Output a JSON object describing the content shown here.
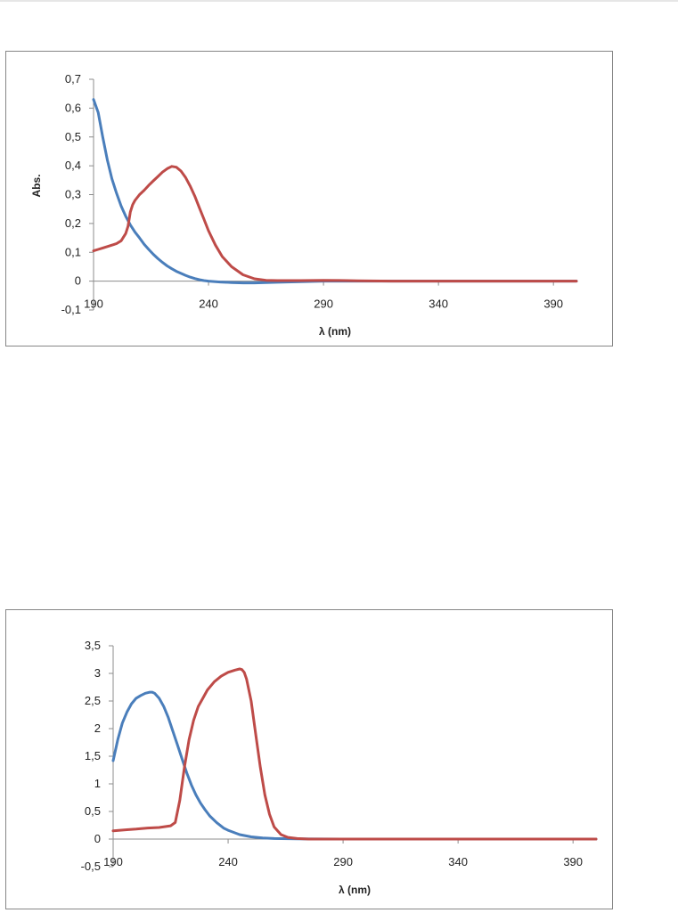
{
  "chart_data": [
    {
      "type": "line",
      "title": "",
      "xlabel": "λ (nm)",
      "ylabel": "Abs.",
      "xlim": [
        190,
        400
      ],
      "ylim": [
        -0.1,
        0.7
      ],
      "x_ticks": [
        190,
        240,
        290,
        340,
        390
      ],
      "x_tick_labels": [
        "190",
        "240",
        "290",
        "340",
        "390"
      ],
      "y_ticks": [
        -0.1,
        0,
        0.1,
        0.2,
        0.3,
        0.4,
        0.5,
        0.6,
        0.7
      ],
      "y_tick_labels": [
        "-0,1",
        "0",
        "0,1",
        "0,2",
        "0,3",
        "0,4",
        "0,5",
        "0,6",
        "0,7"
      ],
      "grid": false,
      "legend": "none",
      "series": [
        {
          "color": "#4a7ebb",
          "x": [
            190,
            192,
            194,
            196,
            198,
            200,
            202,
            204,
            206,
            208,
            210,
            212,
            214,
            216,
            218,
            220,
            222,
            224,
            226,
            228,
            230,
            232,
            234,
            236,
            238,
            240,
            245,
            250,
            255,
            260,
            265,
            270,
            280,
            290,
            300,
            320,
            340,
            360,
            380,
            400
          ],
          "y": [
            0.63,
            0.585,
            0.5,
            0.42,
            0.355,
            0.305,
            0.26,
            0.225,
            0.195,
            0.17,
            0.15,
            0.128,
            0.11,
            0.093,
            0.078,
            0.065,
            0.053,
            0.043,
            0.034,
            0.027,
            0.02,
            0.014,
            0.009,
            0.005,
            0.002,
            0.0,
            -0.003,
            -0.005,
            -0.006,
            -0.006,
            -0.005,
            -0.004,
            -0.002,
            0.0,
            0.0,
            0.0,
            0.0,
            0.0,
            0.0,
            0.0
          ]
        },
        {
          "color": "#be4b48",
          "x": [
            190,
            192,
            194,
            196,
            198,
            200,
            202,
            204,
            205,
            206,
            207,
            208,
            210,
            212,
            214,
            216,
            218,
            220,
            222,
            224,
            226,
            228,
            230,
            232,
            234,
            236,
            238,
            240,
            243,
            246,
            250,
            255,
            260,
            265,
            270,
            280,
            290,
            300,
            305,
            320,
            340,
            360,
            380,
            400
          ],
          "y": [
            0.105,
            0.11,
            0.115,
            0.12,
            0.125,
            0.13,
            0.14,
            0.165,
            0.19,
            0.24,
            0.265,
            0.28,
            0.3,
            0.315,
            0.332,
            0.348,
            0.363,
            0.378,
            0.39,
            0.398,
            0.395,
            0.382,
            0.36,
            0.33,
            0.295,
            0.255,
            0.215,
            0.175,
            0.125,
            0.085,
            0.05,
            0.022,
            0.008,
            0.003,
            0.002,
            0.002,
            0.003,
            0.002,
            0.001,
            0.0,
            0.0,
            0.0,
            0.0,
            0.0
          ]
        }
      ]
    },
    {
      "type": "line",
      "title": "",
      "xlabel": "λ (nm)",
      "ylabel": "",
      "xlim": [
        190,
        400
      ],
      "ylim": [
        -0.5,
        3.5
      ],
      "x_ticks": [
        190,
        240,
        290,
        340,
        390
      ],
      "x_tick_labels": [
        "190",
        "240",
        "290",
        "340",
        "390"
      ],
      "y_ticks": [
        -0.5,
        0,
        0.5,
        1,
        1.5,
        2,
        2.5,
        3,
        3.5
      ],
      "y_tick_labels": [
        "-0,5",
        "0",
        "0,5",
        "1",
        "1,5",
        "2",
        "2,5",
        "3",
        "3,5"
      ],
      "grid": false,
      "legend": "none",
      "series": [
        {
          "color": "#4a7ebb",
          "x": [
            190,
            192,
            194,
            196,
            198,
            200,
            202,
            204,
            206,
            207,
            208,
            210,
            212,
            214,
            216,
            218,
            220,
            222,
            224,
            226,
            228,
            230,
            232,
            235,
            238,
            240,
            245,
            250,
            255,
            260,
            270,
            290,
            340,
            400
          ],
          "y": [
            1.42,
            1.8,
            2.1,
            2.3,
            2.45,
            2.55,
            2.6,
            2.64,
            2.66,
            2.66,
            2.64,
            2.55,
            2.4,
            2.2,
            1.95,
            1.7,
            1.45,
            1.2,
            0.98,
            0.8,
            0.65,
            0.53,
            0.42,
            0.3,
            0.2,
            0.16,
            0.08,
            0.04,
            0.02,
            0.01,
            0.005,
            0.0,
            0.0,
            0.0
          ]
        },
        {
          "color": "#be4b48",
          "x": [
            190,
            193,
            196,
            200,
            205,
            210,
            215,
            217,
            219,
            221,
            223,
            225,
            227,
            229,
            231,
            234,
            237,
            240,
            243,
            245,
            246,
            247,
            248,
            250,
            252,
            254,
            256,
            258,
            260,
            263,
            266,
            270,
            275,
            290,
            340,
            400
          ],
          "y": [
            0.15,
            0.16,
            0.17,
            0.18,
            0.2,
            0.21,
            0.24,
            0.3,
            0.7,
            1.3,
            1.8,
            2.15,
            2.4,
            2.55,
            2.7,
            2.85,
            2.95,
            3.02,
            3.06,
            3.08,
            3.07,
            3.02,
            2.9,
            2.5,
            1.9,
            1.3,
            0.8,
            0.45,
            0.22,
            0.08,
            0.03,
            0.01,
            0.0,
            0.0,
            0.0,
            0.0
          ]
        }
      ]
    }
  ]
}
